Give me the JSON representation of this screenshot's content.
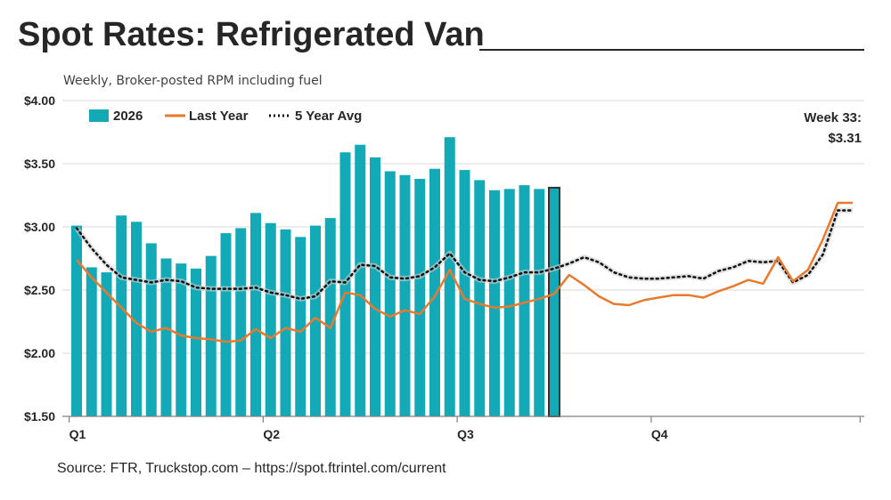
{
  "title": "Spot Rates: Refrigerated Van",
  "subtitle": "Weekly, Broker-posted RPM including fuel",
  "source": "Source: FTR, Truckstop.com – https://spot.ftrintel.com/current",
  "callout": {
    "line1": "Week 33:",
    "line2": "$3.31"
  },
  "colors": {
    "bars": "#14a9b6",
    "highlight_bar_border": "#333333",
    "last_year": "#e87a2f",
    "five_year_avg": "#111111",
    "grid": "#d9d9d9"
  },
  "chart_data": {
    "type": "bar",
    "y_tick_labels": [
      "$4.00",
      "$3.50",
      "$3.00",
      "$2.50",
      "$2.00",
      "$1.50"
    ],
    "y_ticks": [
      4.0,
      3.5,
      3.0,
      2.5,
      2.0,
      1.5
    ],
    "ylim": [
      1.5,
      4.0
    ],
    "x_tick_labels": [
      {
        "label": "Q1",
        "week": 1
      },
      {
        "label": "Q2",
        "week": 14
      },
      {
        "label": "Q3",
        "week": 27
      },
      {
        "label": "Q4",
        "week": 40
      }
    ],
    "x_week_range": [
      1,
      53
    ],
    "grid": true,
    "legend": {
      "placement": "top-left",
      "items": [
        "2026",
        "Last Year",
        "5 Year Avg"
      ]
    },
    "series": [
      {
        "name": "2026",
        "kind": "bar",
        "weeks": [
          1,
          2,
          3,
          4,
          5,
          6,
          7,
          8,
          9,
          10,
          11,
          12,
          13,
          14,
          15,
          16,
          17,
          18,
          19,
          20,
          21,
          22,
          23,
          24,
          25,
          26,
          27,
          28,
          29,
          30,
          31,
          32,
          33
        ],
        "values": [
          3.01,
          2.68,
          2.64,
          3.09,
          3.04,
          2.87,
          2.75,
          2.71,
          2.67,
          2.77,
          2.95,
          2.99,
          3.11,
          3.03,
          2.98,
          2.92,
          3.01,
          3.07,
          3.59,
          3.65,
          3.55,
          3.44,
          3.41,
          3.38,
          3.46,
          3.71,
          3.45,
          3.37,
          3.29,
          3.3,
          3.33,
          3.3,
          3.31
        ],
        "highlight_week": 33
      },
      {
        "name": "Last Year",
        "kind": "line",
        "weeks": [
          1,
          2,
          3,
          4,
          5,
          6,
          7,
          8,
          9,
          10,
          11,
          12,
          13,
          14,
          15,
          16,
          17,
          18,
          19,
          20,
          21,
          22,
          23,
          24,
          25,
          26,
          27,
          28,
          29,
          30,
          31,
          32,
          33,
          34,
          35,
          36,
          37,
          38,
          39,
          40,
          41,
          42,
          43,
          44,
          45,
          46,
          47,
          48,
          49,
          50,
          51,
          52,
          53
        ],
        "values": [
          2.74,
          2.6,
          2.48,
          2.36,
          2.24,
          2.17,
          2.2,
          2.14,
          2.12,
          2.11,
          2.09,
          2.1,
          2.19,
          2.12,
          2.2,
          2.17,
          2.28,
          2.2,
          2.48,
          2.46,
          2.35,
          2.29,
          2.34,
          2.31,
          2.45,
          2.66,
          2.43,
          2.39,
          2.36,
          2.37,
          2.4,
          2.43,
          2.47,
          2.62,
          2.54,
          2.45,
          2.39,
          2.38,
          2.42,
          2.44,
          2.46,
          2.46,
          2.44,
          2.49,
          2.53,
          2.58,
          2.55,
          2.76,
          2.57,
          2.66,
          2.9,
          3.19,
          3.19
        ]
      },
      {
        "name": "5 Year Avg",
        "kind": "line",
        "weeks": [
          1,
          2,
          3,
          4,
          5,
          6,
          7,
          8,
          9,
          10,
          11,
          12,
          13,
          14,
          15,
          16,
          17,
          18,
          19,
          20,
          21,
          22,
          23,
          24,
          25,
          26,
          27,
          28,
          29,
          30,
          31,
          32,
          33,
          34,
          35,
          36,
          37,
          38,
          39,
          40,
          41,
          42,
          43,
          44,
          45,
          46,
          47,
          48,
          49,
          50,
          51,
          52,
          53
        ],
        "values": [
          2.99,
          2.83,
          2.7,
          2.6,
          2.58,
          2.56,
          2.58,
          2.57,
          2.52,
          2.51,
          2.51,
          2.51,
          2.52,
          2.48,
          2.46,
          2.43,
          2.45,
          2.57,
          2.56,
          2.7,
          2.69,
          2.6,
          2.59,
          2.61,
          2.68,
          2.79,
          2.64,
          2.58,
          2.57,
          2.6,
          2.64,
          2.64,
          2.67,
          2.71,
          2.76,
          2.72,
          2.64,
          2.6,
          2.59,
          2.59,
          2.6,
          2.61,
          2.59,
          2.65,
          2.68,
          2.73,
          2.72,
          2.73,
          2.56,
          2.62,
          2.78,
          3.13,
          3.13
        ]
      }
    ]
  }
}
